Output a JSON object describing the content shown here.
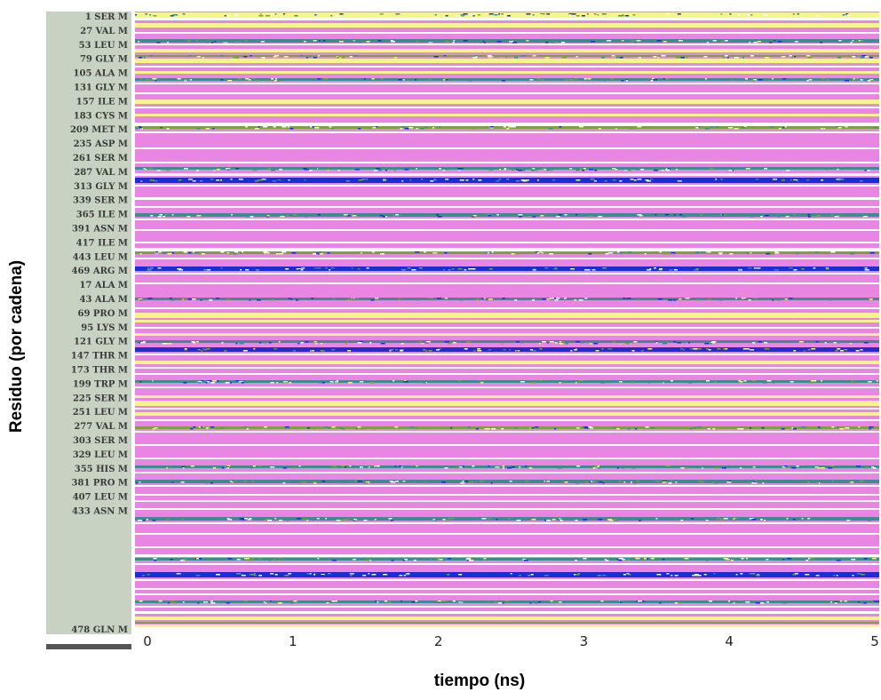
{
  "chart_data": {
    "type": "heatmap",
    "title": "",
    "xlabel": "tiempo (ns)",
    "ylabel": "Residuo (por cadena)",
    "xlim": [
      0,
      5
    ],
    "x_ticks": [
      "0",
      "1",
      "2",
      "3",
      "4",
      "5"
    ],
    "y_ticks": [
      "1 SER M",
      "27 VAL M",
      "53 LEU M",
      "79 GLY M",
      "105 ALA M",
      "131 GLY M",
      "157 ILE M",
      "183 CYS M",
      "209 MET M",
      "235 ASP M",
      "261 SER M",
      "287 VAL M",
      "313 GLY M",
      "339 SER M",
      "365 ILE M",
      "391 ASN M",
      "417 ILE M",
      "443 LEU M",
      "469 ARG M",
      "17 ALA M",
      "43 ALA M",
      "69 PRO M",
      "95 LYS M",
      "121 GLY M",
      "147 THR M",
      "173 THR M",
      "199 TRP M",
      "225 SER M",
      "251 LEU M",
      "277 VAL M",
      "303 SER M",
      "329 LEU M",
      "355 HIS M",
      "381 PRO M",
      "407 LEU M",
      "433 ASN M",
      "478 GLN M"
    ],
    "colors": {
      "pink": "#e986e4",
      "yellow": "#f5f58c",
      "white": "#ffffff",
      "teal": "#3a8f8a",
      "blue": "#1a2fd1",
      "green": "#7aa33f",
      "label_panel": "#c7d2c3"
    },
    "grid": false,
    "legend": "none"
  }
}
